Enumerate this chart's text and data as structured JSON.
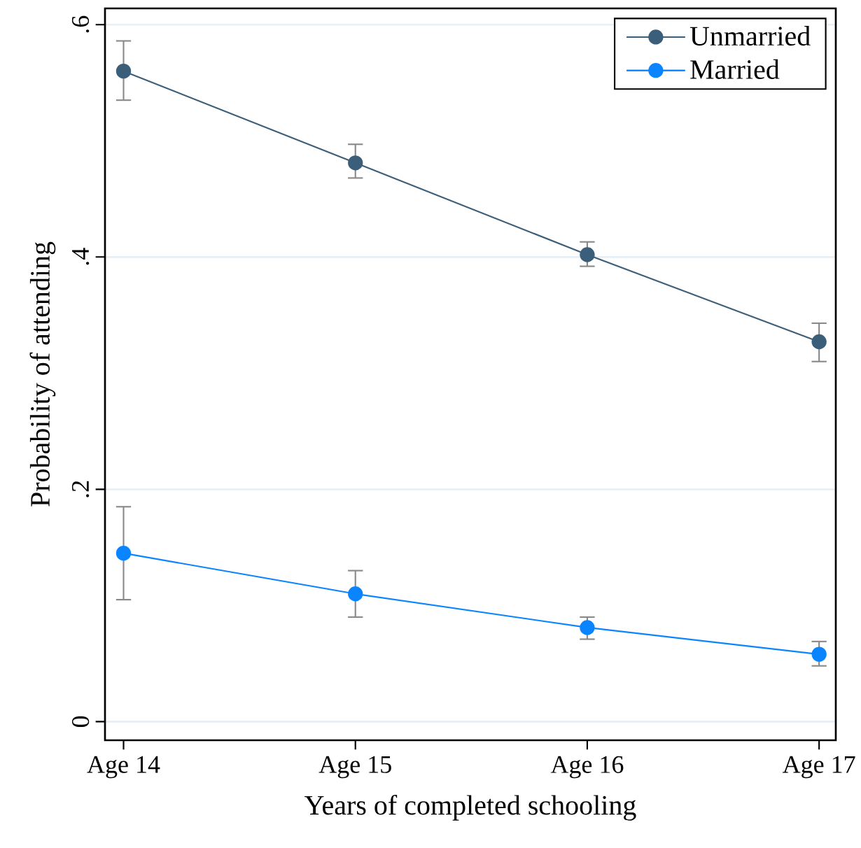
{
  "chart_data": {
    "type": "line",
    "xlabel": "Years of completed schooling",
    "ylabel": "Probability of attending",
    "categories": [
      "Age 14",
      "Age 15",
      "Age 16",
      "Age 17"
    ],
    "series": [
      {
        "name": "Unmarried",
        "color": "#3b5f7a",
        "values": [
          0.56,
          0.481,
          0.402,
          0.327
        ],
        "errors": [
          [
            0.535,
            0.586
          ],
          [
            0.468,
            0.497
          ],
          [
            0.392,
            0.413
          ],
          [
            0.31,
            0.343
          ]
        ]
      },
      {
        "name": "Married",
        "color": "#0a84ff",
        "values": [
          0.145,
          0.11,
          0.081,
          0.058
        ],
        "errors": [
          [
            0.105,
            0.185
          ],
          [
            0.09,
            0.13
          ],
          [
            0.071,
            0.09
          ],
          [
            0.048,
            0.069
          ]
        ]
      }
    ],
    "ylim": [
      -0.016,
      0.614
    ],
    "yticks": [
      0,
      {
        "value": 0.2,
        "label": ".2"
      },
      {
        "value": 0.4,
        "label": ".4"
      },
      {
        "value": 0.6,
        "label": ".6"
      }
    ],
    "grid": "y",
    "legend": "top right",
    "marker": "circle",
    "line_style": "solid"
  }
}
